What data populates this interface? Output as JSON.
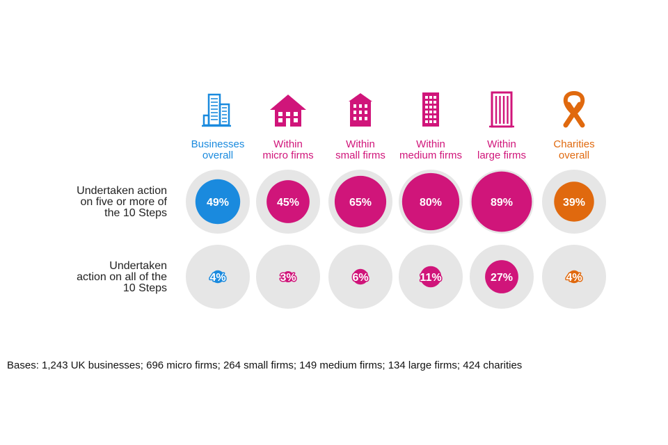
{
  "chart_data": {
    "type": "proportional-circle-matrix",
    "columns": [
      {
        "label_line1": "Businesses",
        "label_line2": "overall",
        "icon": "office-tower-icon",
        "color": "#1a8ade"
      },
      {
        "label_line1": "Within",
        "label_line2": "micro firms",
        "icon": "house-icon",
        "color": "#d0157a"
      },
      {
        "label_line1": "Within",
        "label_line2": "small firms",
        "icon": "small-building-icon",
        "color": "#d0157a"
      },
      {
        "label_line1": "Within",
        "label_line2": "medium firms",
        "icon": "medium-building-icon",
        "color": "#d0157a"
      },
      {
        "label_line1": "Within",
        "label_line2": "large firms",
        "icon": "skyscraper-icon",
        "color": "#d0157a"
      },
      {
        "label_line1": "Charities",
        "label_line2": "overall",
        "icon": "awareness-ribbon-icon",
        "color": "#e0690e"
      }
    ],
    "rows": [
      {
        "label_lines": [
          "Undertaken action",
          "on five or more of",
          "the 10 Steps"
        ],
        "values": [
          49,
          45,
          65,
          80,
          89,
          39
        ]
      },
      {
        "label_lines": [
          "Undertaken",
          "action on all of the",
          "10 Steps"
        ],
        "values": [
          4,
          3,
          6,
          11,
          27,
          4
        ]
      }
    ],
    "unit": "%",
    "max_value": 100
  },
  "colors": {
    "business_blue": "#1a8ade",
    "firm_pink": "#d0157a",
    "charity_orange": "#e0690e",
    "background_circle": "#e6e6e6"
  },
  "footnote": "Bases: 1,243 UK businesses; 696 micro firms; 264 small firms; 149 medium firms; 134 large firms; 424 charities"
}
